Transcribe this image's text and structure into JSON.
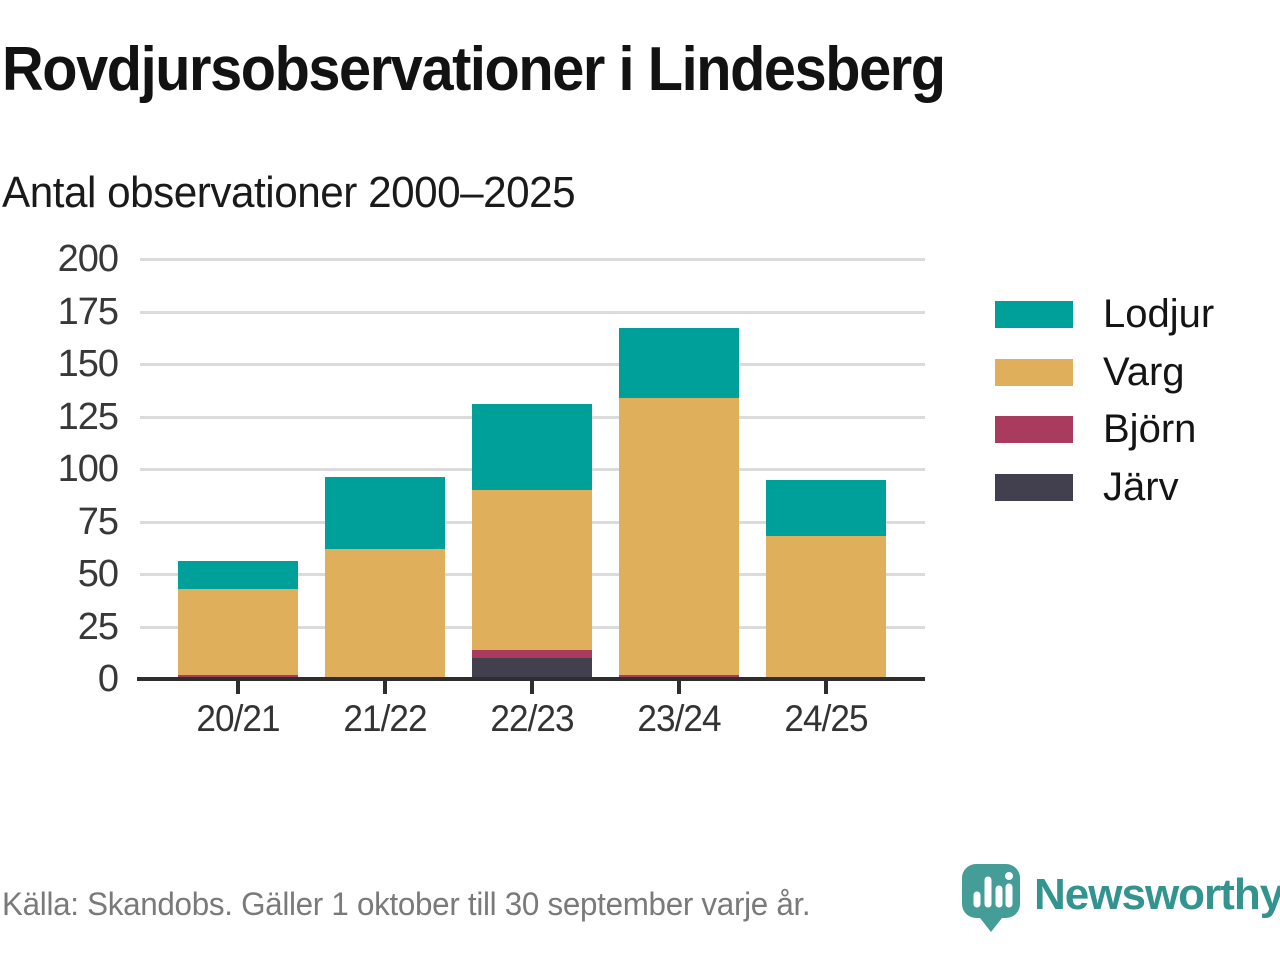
{
  "title": "Rovdjursobservationer i Lindesberg",
  "subtitle": "Antal observationer 2000–2025",
  "footer": {
    "source": "Källa: Skandobs. Gäller 1 oktober till 30 september varje år."
  },
  "logo": {
    "brand": "Newsworthy",
    "icon": "newsworthy-bubble-chart-icon",
    "icon_color": "#459d98",
    "text_color": "#33948f"
  },
  "colors": {
    "grid": "#dbdbdb",
    "axis": "#2e2e2e",
    "tick_label": "#383838",
    "title": "#121212",
    "source_text": "#7a7a7a"
  },
  "chart_data": {
    "type": "bar",
    "stacked": true,
    "title": "Rovdjursobservationer i Lindesberg",
    "subtitle": "Antal observationer 2000–2025",
    "categories": [
      "20/21",
      "21/22",
      "22/23",
      "23/24",
      "24/25"
    ],
    "series": [
      {
        "name": "Lodjur",
        "color": "#00a09a",
        "values": [
          13,
          34,
          41,
          33,
          27
        ]
      },
      {
        "name": "Varg",
        "color": "#dfaf5b",
        "values": [
          41,
          62,
          76,
          132,
          68
        ]
      },
      {
        "name": "Björn",
        "color": "#a93c5e",
        "values": [
          2,
          0,
          4,
          2,
          0
        ]
      },
      {
        "name": "Järv",
        "color": "#423f4e",
        "values": [
          0,
          0,
          10,
          0,
          0
        ]
      }
    ],
    "stack_order_bottom_to_top": [
      "Järv",
      "Björn",
      "Varg",
      "Lodjur"
    ],
    "totals": [
      56,
      96,
      131,
      167,
      95
    ],
    "xlabel": "",
    "ylabel": "",
    "ylim": [
      0,
      200
    ],
    "y_ticks": [
      0,
      25,
      50,
      75,
      100,
      125,
      150,
      175,
      200
    ],
    "grid": "horizontal",
    "legend_position": "right"
  }
}
